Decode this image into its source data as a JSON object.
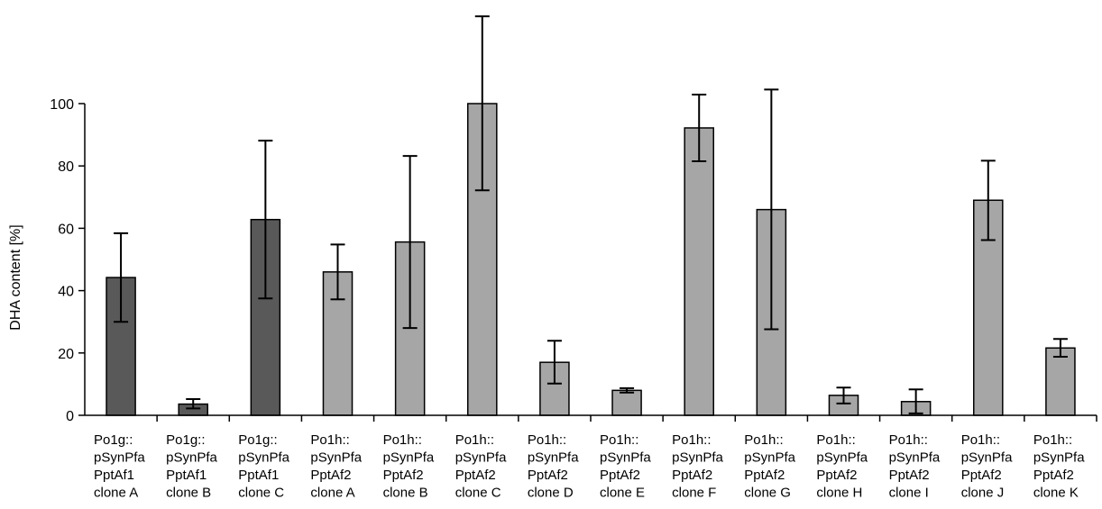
{
  "chart_data": {
    "type": "bar",
    "title": "",
    "xlabel": "",
    "ylabel": "DHA content [%]",
    "ylim": [
      0,
      100
    ],
    "yticks": [
      0,
      20,
      40,
      60,
      80,
      100
    ],
    "grid": false,
    "legend": "none",
    "categories": [
      [
        "Po1g::",
        "pSynPfa",
        "PptAf1",
        "clone A"
      ],
      [
        "Po1g::",
        "pSynPfa",
        "PptAf1",
        "clone B"
      ],
      [
        "Po1g::",
        "pSynPfa",
        "PptAf1",
        "clone C"
      ],
      [
        "Po1h::",
        "pSynPfa",
        "PptAf2",
        "clone A"
      ],
      [
        "Po1h::",
        "pSynPfa",
        "PptAf2",
        "clone B"
      ],
      [
        "Po1h::",
        "pSynPfa",
        "PptAf2",
        "clone C"
      ],
      [
        "Po1h::",
        "pSynPfa",
        "PptAf2",
        "clone D"
      ],
      [
        "Po1h::",
        "pSynPfa",
        "PptAf2",
        "clone E"
      ],
      [
        "Po1h::",
        "pSynPfa",
        "PptAf2",
        "clone F"
      ],
      [
        "Po1h::",
        "pSynPfa",
        "PptAf2",
        "clone G"
      ],
      [
        "Po1h::",
        "pSynPfa",
        "PptAf2",
        "clone H"
      ],
      [
        "Po1h::",
        "pSynPfa",
        "PptAf2",
        "clone I"
      ],
      [
        "Po1h::",
        "pSynPfa",
        "PptAf2",
        "clone J"
      ],
      [
        "Po1h::",
        "pSynPfa",
        "PptAf2",
        "clone K"
      ]
    ],
    "values": [
      44.2,
      3.6,
      62.8,
      46.0,
      55.6,
      100.0,
      17.0,
      8.0,
      92.2,
      66.0,
      6.4,
      4.4,
      69.0,
      21.6
    ],
    "error_low": [
      30.0,
      2.2,
      37.5,
      37.2,
      28.0,
      72.2,
      10.2,
      7.3,
      81.5,
      27.6,
      3.8,
      0.6,
      56.2,
      18.8
    ],
    "error_high": [
      58.4,
      5.2,
      88.1,
      54.8,
      83.2,
      128.0,
      23.9,
      8.7,
      102.9,
      104.5,
      8.9,
      8.3,
      81.7,
      24.5
    ],
    "colors": [
      "#595959",
      "#595959",
      "#595959",
      "#a6a6a6",
      "#a6a6a6",
      "#a6a6a6",
      "#a6a6a6",
      "#a6a6a6",
      "#a6a6a6",
      "#a6a6a6",
      "#a6a6a6",
      "#a6a6a6",
      "#a6a6a6",
      "#a6a6a6"
    ]
  }
}
